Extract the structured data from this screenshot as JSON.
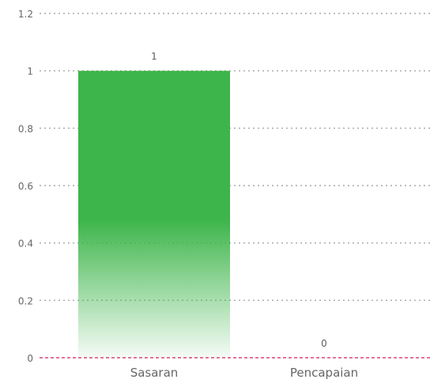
{
  "chart_data": {
    "type": "bar",
    "categories": [
      "Sasaran",
      "Pencapaian"
    ],
    "values": [
      1,
      0
    ],
    "data_labels": [
      "1",
      "0"
    ],
    "ylim": [
      0,
      1.2
    ],
    "yticks": [
      "0",
      "0.2",
      "0.4",
      "0.6",
      "0.8",
      "1",
      "1.2"
    ],
    "title": "",
    "xlabel": "",
    "ylabel": "",
    "grid": true,
    "legend": "none",
    "colors": {
      "bar": "#3db54a",
      "grid": "#a8a8a8",
      "baseline": "#d8457a",
      "text": "#5a5a5a",
      "axis_text": "#666666"
    }
  }
}
